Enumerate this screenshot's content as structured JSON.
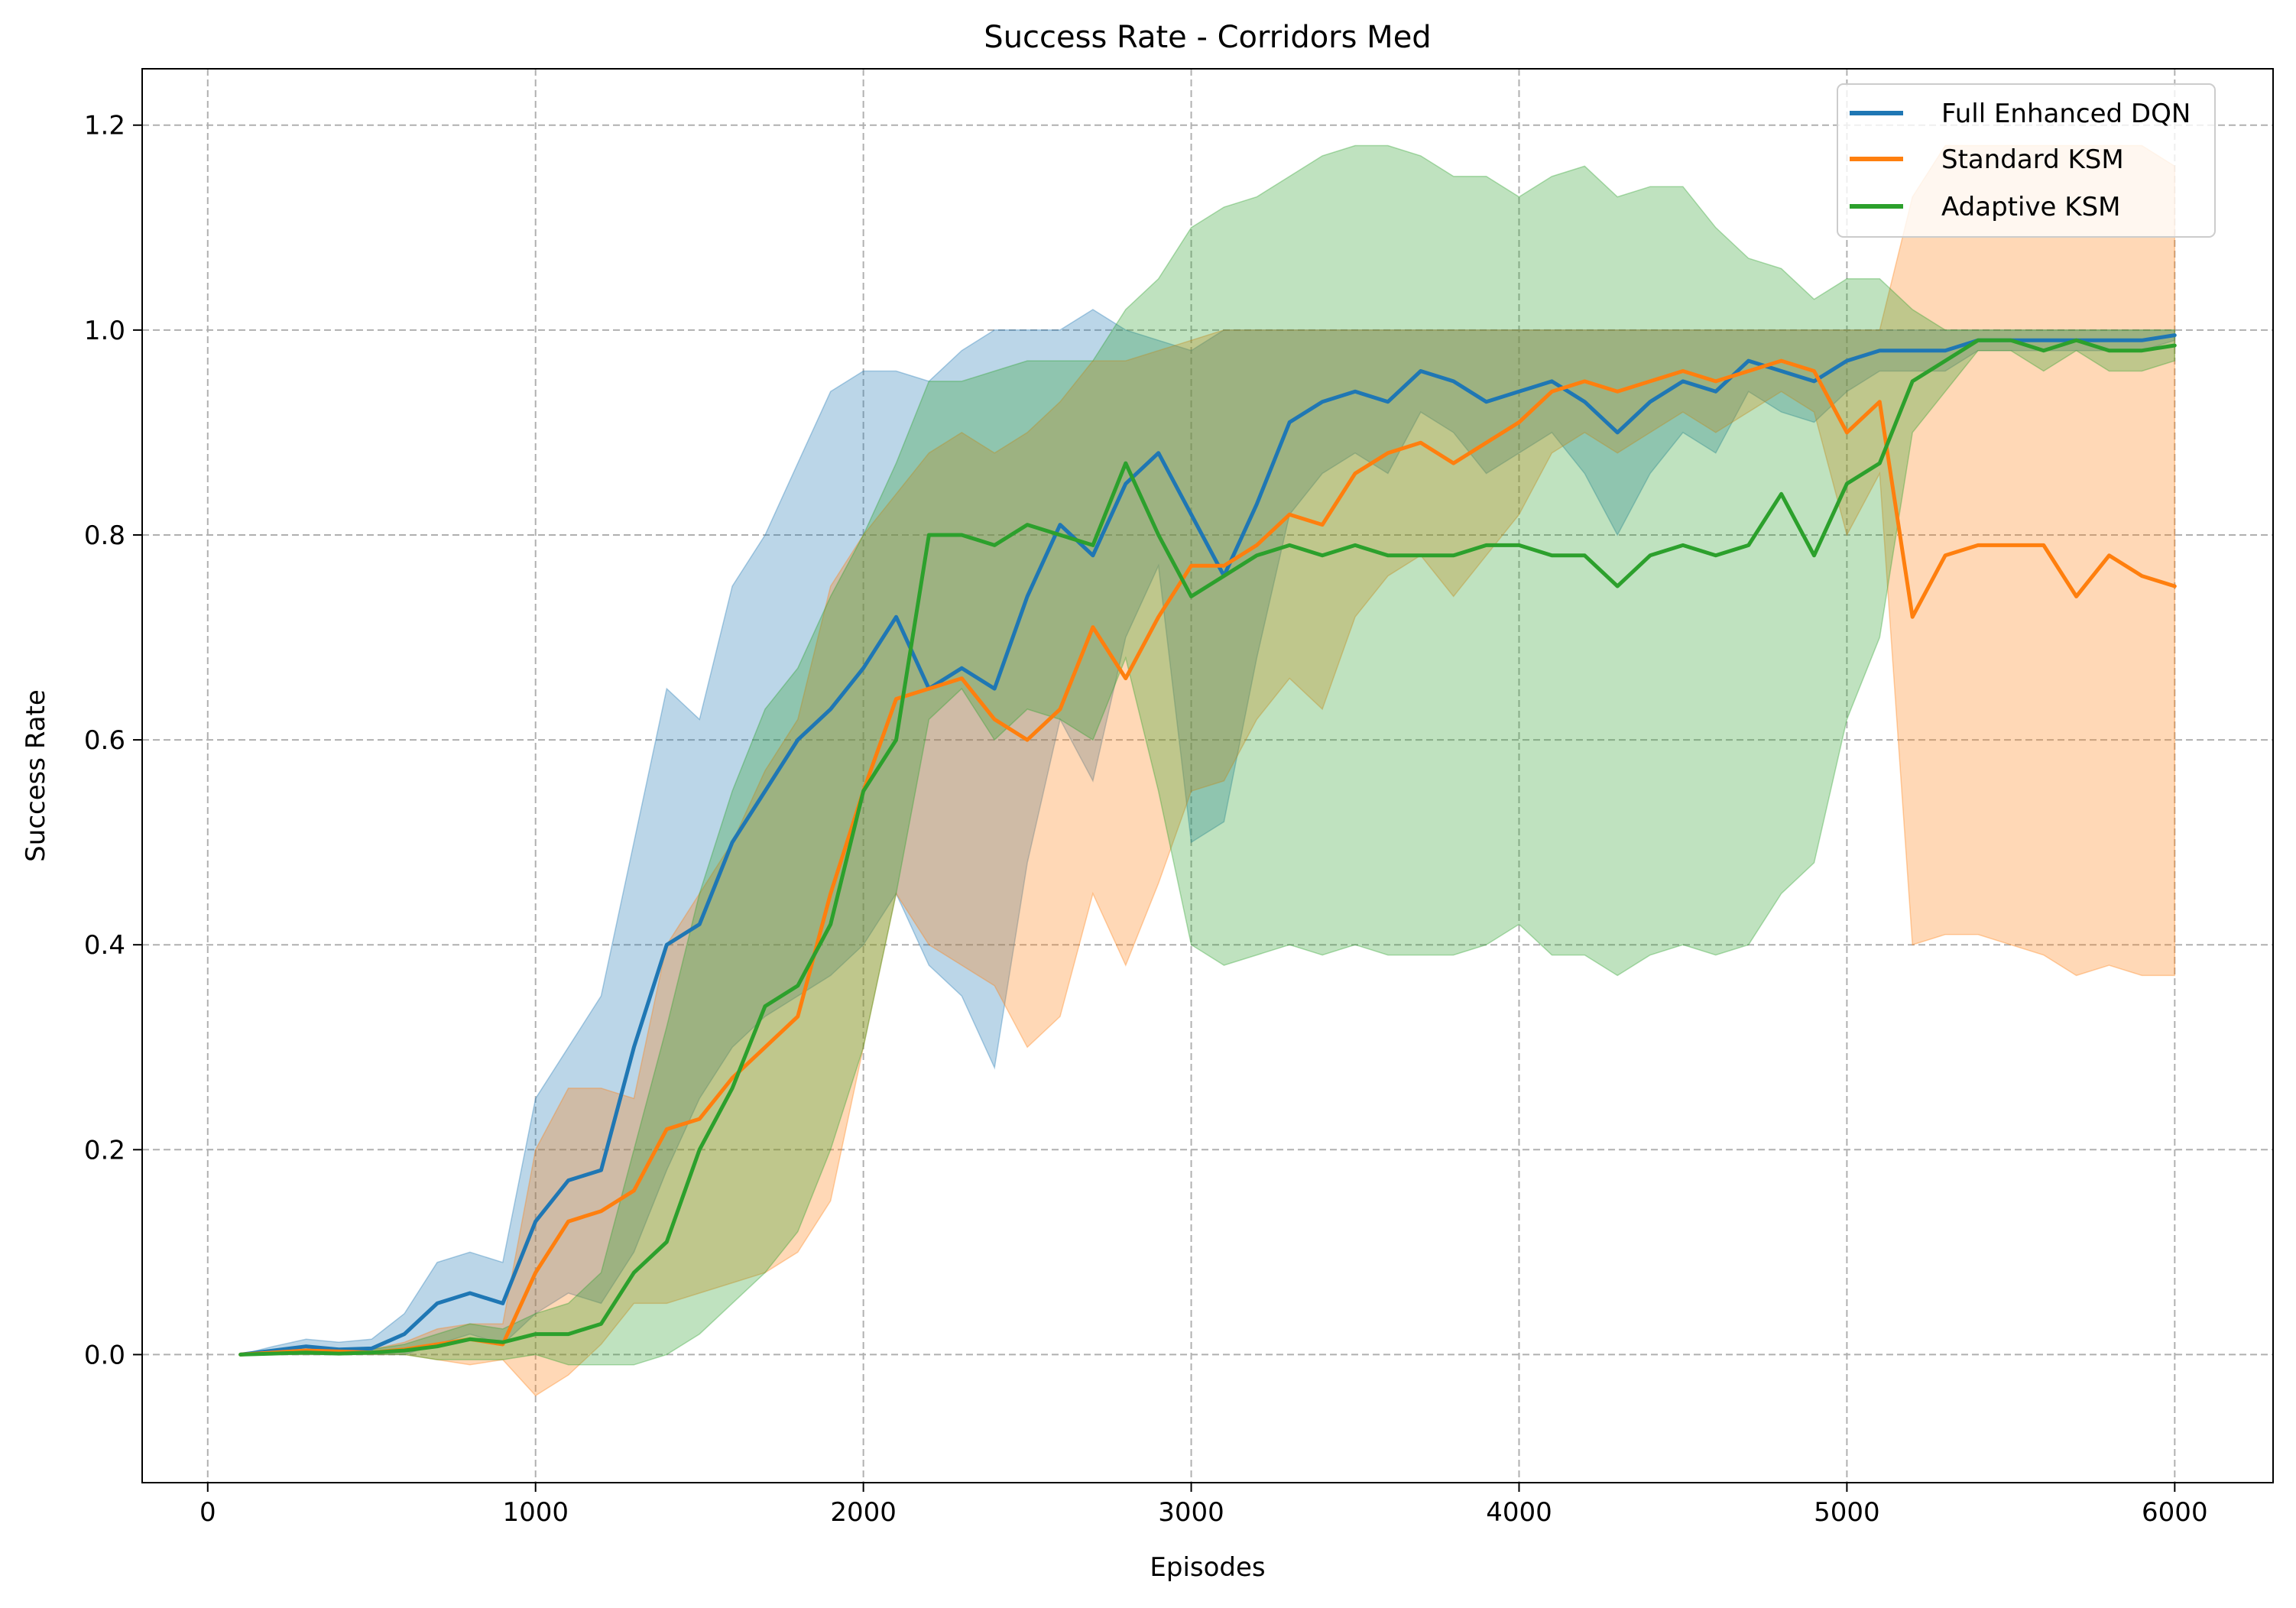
{
  "colors": {
    "full_enhanced_dqn": "#1f77b4",
    "standard_ksm": "#ff7f0e",
    "adaptive_ksm": "#2ca02c",
    "grid": "#b0b0b0"
  },
  "chart_data": {
    "type": "line",
    "title": "Success Rate - Corridors Med",
    "xlabel": "Episodes",
    "ylabel": "Success Rate",
    "xlim": [
      -200,
      6300
    ],
    "ylim": [
      -0.125,
      1.255
    ],
    "xticks": [
      0,
      1000,
      2000,
      3000,
      4000,
      5000,
      6000
    ],
    "yticks": [
      0.0,
      0.2,
      0.4,
      0.6,
      0.8,
      1.0,
      1.2
    ],
    "xtick_labels": [
      "0",
      "1000",
      "2000",
      "3000",
      "4000",
      "5000",
      "6000"
    ],
    "ytick_labels": [
      "0.0",
      "0.2",
      "0.4",
      "0.6",
      "0.8",
      "1.0",
      "1.2"
    ],
    "grid": true,
    "grid_style": "dashed",
    "legend_position": "top-right",
    "x": [
      100,
      200,
      300,
      400,
      500,
      600,
      700,
      800,
      900,
      1000,
      1100,
      1200,
      1300,
      1400,
      1500,
      1600,
      1700,
      1800,
      1900,
      2000,
      2100,
      2200,
      2300,
      2400,
      2500,
      2600,
      2700,
      2800,
      2900,
      3000,
      3100,
      3200,
      3300,
      3400,
      3500,
      3600,
      3700,
      3800,
      3900,
      4000,
      4100,
      4200,
      4300,
      4400,
      4500,
      4600,
      4700,
      4800,
      4900,
      5000,
      5100,
      5200,
      5300,
      5400,
      5500,
      5600,
      5700,
      5800,
      5900,
      6000
    ],
    "series": [
      {
        "name": "Full Enhanced DQN",
        "color": "#1f77b4",
        "values": [
          0,
          0.004,
          0.008,
          0.005,
          0.006,
          0.02,
          0.05,
          0.06,
          0.05,
          0.13,
          0.17,
          0.18,
          0.3,
          0.4,
          0.42,
          0.5,
          0.55,
          0.6,
          0.63,
          0.67,
          0.72,
          0.65,
          0.67,
          0.65,
          0.74,
          0.81,
          0.78,
          0.85,
          0.88,
          0.82,
          0.76,
          0.83,
          0.91,
          0.93,
          0.94,
          0.93,
          0.96,
          0.95,
          0.93,
          0.94,
          0.95,
          0.93,
          0.9,
          0.93,
          0.95,
          0.94,
          0.97,
          0.96,
          0.95,
          0.97,
          0.98,
          0.98,
          0.98,
          0.99,
          0.99,
          0.99,
          0.99,
          0.99,
          0.99,
          0.995
        ],
        "upper": [
          0,
          0.008,
          0.015,
          0.012,
          0.015,
          0.04,
          0.09,
          0.1,
          0.09,
          0.25,
          0.3,
          0.35,
          0.5,
          0.65,
          0.62,
          0.75,
          0.8,
          0.87,
          0.94,
          0.96,
          0.96,
          0.95,
          0.98,
          1.0,
          1.0,
          1.0,
          1.02,
          1.0,
          0.99,
          0.98,
          1.0,
          1.0,
          1.0,
          1.0,
          1.0,
          1.0,
          1.0,
          1.0,
          1.0,
          1.0,
          1.0,
          1.0,
          1.0,
          1.0,
          1.0,
          1.0,
          1.0,
          1.0,
          1.0,
          1.0,
          1.0,
          1.0,
          1.0,
          1.0,
          1.0,
          1.0,
          1.0,
          1.0,
          1.0,
          1.0
        ],
        "lower": [
          0,
          0,
          0,
          0,
          0,
          0,
          0.01,
          0.02,
          0.01,
          0.04,
          0.06,
          0.05,
          0.1,
          0.18,
          0.25,
          0.3,
          0.33,
          0.35,
          0.37,
          0.4,
          0.45,
          0.38,
          0.35,
          0.28,
          0.48,
          0.62,
          0.56,
          0.7,
          0.77,
          0.5,
          0.52,
          0.68,
          0.82,
          0.86,
          0.88,
          0.86,
          0.92,
          0.9,
          0.86,
          0.88,
          0.9,
          0.86,
          0.8,
          0.86,
          0.9,
          0.88,
          0.94,
          0.92,
          0.91,
          0.94,
          0.96,
          0.96,
          0.96,
          0.98,
          0.98,
          0.98,
          0.98,
          0.98,
          0.98,
          0.99
        ]
      },
      {
        "name": "Standard KSM",
        "color": "#ff7f0e",
        "values": [
          0,
          0.002,
          0.004,
          0.003,
          0.002,
          0.005,
          0.01,
          0.015,
          0.01,
          0.08,
          0.13,
          0.14,
          0.16,
          0.22,
          0.23,
          0.27,
          0.3,
          0.33,
          0.45,
          0.55,
          0.64,
          0.65,
          0.66,
          0.62,
          0.6,
          0.63,
          0.71,
          0.66,
          0.72,
          0.77,
          0.77,
          0.79,
          0.82,
          0.81,
          0.86,
          0.88,
          0.89,
          0.87,
          0.89,
          0.91,
          0.94,
          0.95,
          0.94,
          0.95,
          0.96,
          0.95,
          0.96,
          0.97,
          0.96,
          0.9,
          0.93,
          0.72,
          0.78,
          0.79,
          0.79,
          0.79,
          0.74,
          0.78,
          0.76,
          0.75
        ],
        "upper": [
          0,
          0.005,
          0.008,
          0.006,
          0.005,
          0.012,
          0.025,
          0.03,
          0.03,
          0.2,
          0.26,
          0.26,
          0.25,
          0.4,
          0.45,
          0.5,
          0.57,
          0.62,
          0.75,
          0.8,
          0.84,
          0.88,
          0.9,
          0.88,
          0.9,
          0.93,
          0.97,
          0.97,
          0.98,
          0.99,
          1.0,
          1.0,
          1.0,
          1.0,
          1.0,
          1.0,
          1.0,
          1.0,
          1.0,
          1.0,
          1.0,
          1.0,
          1.0,
          1.0,
          1.0,
          1.0,
          1.0,
          1.0,
          1.0,
          1.0,
          1.0,
          1.13,
          1.18,
          1.18,
          1.18,
          1.18,
          1.18,
          1.18,
          1.18,
          1.16
        ],
        "lower": [
          0,
          0,
          0,
          0,
          0,
          0,
          -0.005,
          -0.01,
          -0.005,
          -0.04,
          -0.02,
          0.01,
          0.05,
          0.05,
          0.06,
          0.07,
          0.08,
          0.1,
          0.15,
          0.3,
          0.45,
          0.4,
          0.38,
          0.36,
          0.3,
          0.33,
          0.45,
          0.38,
          0.46,
          0.55,
          0.56,
          0.62,
          0.66,
          0.63,
          0.72,
          0.76,
          0.78,
          0.74,
          0.78,
          0.82,
          0.88,
          0.9,
          0.88,
          0.9,
          0.92,
          0.9,
          0.92,
          0.94,
          0.92,
          0.8,
          0.86,
          0.4,
          0.41,
          0.41,
          0.4,
          0.39,
          0.37,
          0.38,
          0.37,
          0.37
        ]
      },
      {
        "name": "Adaptive KSM",
        "color": "#2ca02c",
        "values": [
          0,
          0.001,
          0.002,
          0.001,
          0.002,
          0.004,
          0.008,
          0.015,
          0.012,
          0.02,
          0.02,
          0.03,
          0.08,
          0.11,
          0.2,
          0.26,
          0.34,
          0.36,
          0.42,
          0.55,
          0.6,
          0.8,
          0.8,
          0.79,
          0.81,
          0.8,
          0.79,
          0.87,
          0.8,
          0.74,
          0.76,
          0.78,
          0.79,
          0.78,
          0.79,
          0.78,
          0.78,
          0.78,
          0.79,
          0.79,
          0.78,
          0.78,
          0.75,
          0.78,
          0.79,
          0.78,
          0.79,
          0.84,
          0.78,
          0.85,
          0.87,
          0.95,
          0.97,
          0.99,
          0.99,
          0.98,
          0.99,
          0.98,
          0.98,
          0.985
        ],
        "upper": [
          0,
          0.003,
          0.005,
          0.003,
          0.005,
          0.01,
          0.02,
          0.03,
          0.025,
          0.04,
          0.05,
          0.08,
          0.2,
          0.32,
          0.45,
          0.55,
          0.63,
          0.67,
          0.74,
          0.8,
          0.87,
          0.95,
          0.95,
          0.96,
          0.97,
          0.97,
          0.97,
          1.02,
          1.05,
          1.1,
          1.12,
          1.13,
          1.15,
          1.17,
          1.18,
          1.18,
          1.17,
          1.15,
          1.15,
          1.13,
          1.15,
          1.16,
          1.13,
          1.14,
          1.14,
          1.1,
          1.07,
          1.06,
          1.03,
          1.05,
          1.05,
          1.02,
          1.0,
          1.0,
          1.0,
          1.0,
          1.0,
          1.0,
          1.0,
          1.0
        ],
        "lower": [
          0,
          0,
          0,
          0,
          0,
          0,
          -0.005,
          -0.005,
          -0.005,
          0,
          -0.01,
          -0.01,
          -0.01,
          0,
          0.02,
          0.05,
          0.08,
          0.12,
          0.2,
          0.3,
          0.45,
          0.62,
          0.65,
          0.6,
          0.63,
          0.62,
          0.6,
          0.68,
          0.55,
          0.4,
          0.38,
          0.39,
          0.4,
          0.39,
          0.4,
          0.39,
          0.39,
          0.39,
          0.4,
          0.42,
          0.39,
          0.39,
          0.37,
          0.39,
          0.4,
          0.39,
          0.4,
          0.45,
          0.48,
          0.62,
          0.7,
          0.9,
          0.94,
          0.98,
          0.98,
          0.96,
          0.98,
          0.96,
          0.96,
          0.97
        ]
      }
    ]
  }
}
